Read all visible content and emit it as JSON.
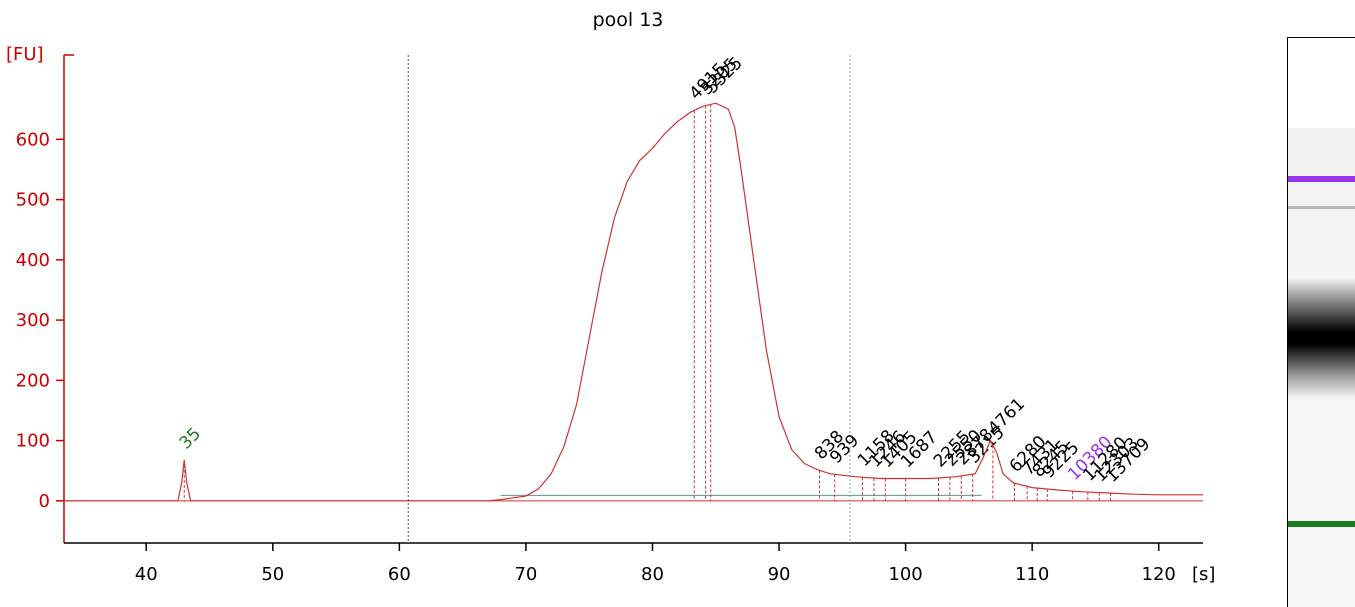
{
  "chart_data": {
    "type": "line",
    "title": "pool 13",
    "ylabel": "[FU]",
    "xlabel": "[s]",
    "xlim": [
      33.5,
      123.5
    ],
    "ylim": [
      -70,
      740
    ],
    "xticks": [
      40,
      50,
      60,
      70,
      80,
      90,
      100,
      110,
      120
    ],
    "yticks": [
      0,
      100,
      200,
      300,
      400,
      500,
      600
    ],
    "grid": false,
    "series": [
      {
        "color": "#cc3333",
        "x": [
          33.5,
          42.5,
          42.8,
          43.0,
          43.2,
          43.5,
          67.0,
          68.0,
          70.0,
          71.0,
          72.0,
          73.0,
          74.0,
          75.0,
          76.0,
          77.0,
          78.0,
          79.0,
          80.0,
          81.0,
          82.0,
          83.0,
          84.0,
          85.0,
          86.0,
          86.5,
          87.0,
          88.0,
          89.0,
          90.0,
          91.0,
          92.0,
          93.0,
          94.0,
          96.0,
          98.0,
          100.0,
          102.0,
          104.0,
          105.5,
          106.2,
          106.7,
          107.2,
          107.7,
          108.5,
          110.0,
          112.0,
          114.0,
          116.0,
          118.0,
          120.0,
          123.5
        ],
        "y": [
          0,
          0,
          30,
          68,
          30,
          0,
          0,
          2,
          8,
          20,
          45,
          90,
          160,
          270,
          380,
          470,
          530,
          565,
          585,
          610,
          630,
          645,
          655,
          660,
          650,
          620,
          550,
          400,
          250,
          140,
          85,
          62,
          52,
          45,
          40,
          37,
          37,
          37,
          40,
          45,
          75,
          100,
          80,
          45,
          30,
          22,
          18,
          15,
          13,
          11,
          10,
          10
        ]
      }
    ],
    "peak_labels": [
      {
        "x": 43.0,
        "label": "35",
        "color": "#1e7a1e"
      },
      {
        "x": 83.3,
        "label": "4915",
        "color": "#000000"
      },
      {
        "x": 84.2,
        "label": "5205",
        "color": "#000000"
      },
      {
        "x": 84.6,
        "label": "5325",
        "color": "#000000"
      },
      {
        "x": 93.2,
        "label": "838",
        "color": "#000000"
      },
      {
        "x": 94.4,
        "label": "939",
        "color": "#000000"
      },
      {
        "x": 96.6,
        "label": "1158",
        "color": "#000000"
      },
      {
        "x": 97.5,
        "label": "1246",
        "color": "#000000"
      },
      {
        "x": 98.4,
        "label": "1405",
        "color": "#000000"
      },
      {
        "x": 100.0,
        "label": "1687",
        "color": "#000000"
      },
      {
        "x": 102.6,
        "label": "2255",
        "color": "#000000"
      },
      {
        "x": 103.5,
        "label": "2550",
        "color": "#000000"
      },
      {
        "x": 104.4,
        "label": "2878",
        "color": "#000000"
      },
      {
        "x": 105.3,
        "label": "3215",
        "color": "#000000"
      },
      {
        "x": 106.9,
        "label": "4761",
        "color": "#000000"
      },
      {
        "x": 108.6,
        "label": "6280",
        "color": "#000000"
      },
      {
        "x": 109.6,
        "label": "7431",
        "color": "#000000"
      },
      {
        "x": 110.4,
        "label": "8245",
        "color": "#000000"
      },
      {
        "x": 111.2,
        "label": "9225",
        "color": "#000000"
      },
      {
        "x": 113.2,
        "label": "10380",
        "color": "#9933ee"
      },
      {
        "x": 114.4,
        "label": "11280",
        "color": "#000000"
      },
      {
        "x": 115.3,
        "label": "12303",
        "color": "#000000"
      },
      {
        "x": 116.2,
        "label": "13709",
        "color": "#000000"
      }
    ],
    "annotations": [
      {
        "type": "vertical-dotted",
        "x": 60.7,
        "color": "#4444cc"
      },
      {
        "type": "vertical-dotted",
        "x": 95.6,
        "color": "#9999bb"
      }
    ],
    "gel": {
      "upper_marker_color": "#9933ee",
      "lower_marker_color": "#1e7a1e"
    }
  }
}
